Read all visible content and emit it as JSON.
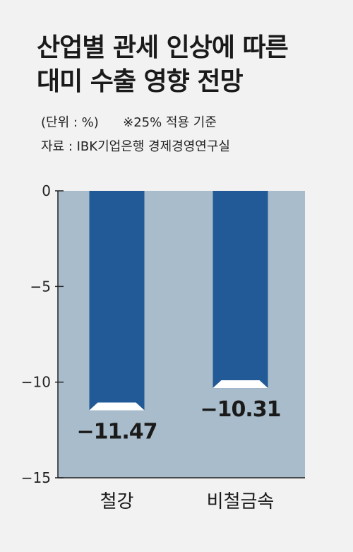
{
  "header": {
    "title_line1": "산업별 관세 인상에 따른",
    "title_line2": "대미 수출 영향 전망",
    "unit": "(단위 : %)",
    "note": "※25% 적용 기준",
    "source": "자료 : IBK기업은행 경제경영연구실"
  },
  "colors": {
    "background": "#f2f2f2",
    "plot_area": "#a9bccb",
    "bar": "#215a96",
    "bar_cap": "#ffffff",
    "axis": "#222222"
  },
  "chart_data": {
    "type": "bar",
    "categories": [
      "철강",
      "비철금속"
    ],
    "values": [
      -11.47,
      -10.31
    ],
    "data_labels": [
      "−11.47",
      "−10.31"
    ],
    "ylim": [
      -15,
      0
    ],
    "yticks": [
      0,
      -5,
      -10,
      -15
    ],
    "ytick_labels": [
      "0",
      "−5",
      "−10",
      "−15"
    ],
    "grid": false,
    "legend": "none"
  }
}
